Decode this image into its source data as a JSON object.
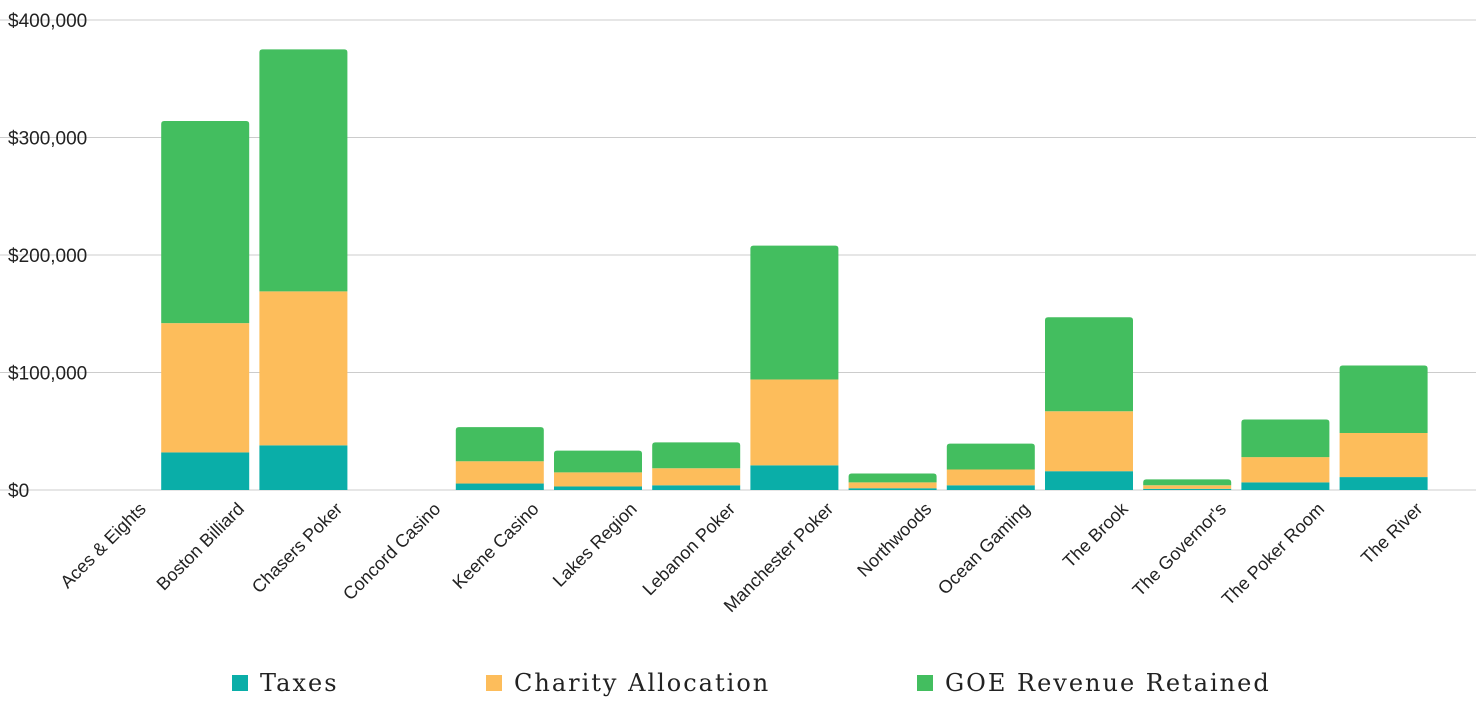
{
  "chart_data": {
    "type": "bar",
    "stacked": true,
    "title": "",
    "xlabel": "",
    "ylabel": "",
    "ylim": [
      0,
      400000
    ],
    "yticks": [
      0,
      100000,
      200000,
      300000,
      400000
    ],
    "ytick_labels": [
      "$0",
      "$100,000",
      "$200,000",
      "$300,000",
      "$400,000"
    ],
    "grid": true,
    "legend_position": "bottom",
    "categories": [
      "Aces & Eights",
      "Boston Billiard",
      "Chasers Poker",
      "Concord Casino",
      "Keene Casino",
      "Lakes Region",
      "Lebanon Poker",
      "Manchester Poker",
      "Northwoods",
      "Ocean Gaming",
      "The Brook",
      "The Governor's",
      "The Poker Room",
      "The River"
    ],
    "series": [
      {
        "name": "Taxes",
        "color": "#0aaea8",
        "values": [
          0,
          32000,
          38000,
          0,
          5500,
          3000,
          4000,
          21000,
          1500,
          4000,
          16000,
          1000,
          6500,
          11000
        ]
      },
      {
        "name": "Charity Allocation",
        "color": "#fdbd5b",
        "values": [
          0,
          110000,
          131000,
          0,
          19000,
          12000,
          14500,
          73000,
          5000,
          13500,
          51000,
          3000,
          21500,
          37500
        ]
      },
      {
        "name": "GOE Revenue Retained",
        "color": "#43be5f",
        "values": [
          0,
          172000,
          206000,
          0,
          29000,
          18500,
          22000,
          114000,
          7500,
          22000,
          80000,
          5000,
          32000,
          57500
        ]
      }
    ]
  }
}
